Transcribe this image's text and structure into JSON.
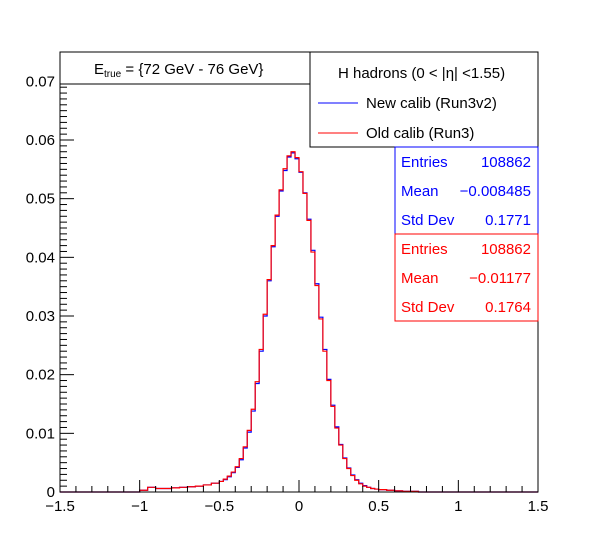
{
  "chart_data": {
    "type": "line",
    "step": true,
    "xlim": [
      -1.5,
      1.5
    ],
    "ylim": [
      0,
      0.075
    ],
    "x_ticks": [
      -1.5,
      -1,
      -0.5,
      0,
      0.5,
      1,
      1.5
    ],
    "x_tick_labels": [
      "−1.5",
      "−1",
      "−0.5",
      "0",
      "0.5",
      "1",
      "1.5"
    ],
    "y_ticks": [
      0,
      0.01,
      0.02,
      0.03,
      0.04,
      0.05,
      0.06,
      0.07
    ],
    "y_tick_labels": [
      "0",
      "0.01",
      "0.02",
      "0.03",
      "0.04",
      "0.05",
      "0.06",
      "0.07"
    ],
    "grid": false,
    "energy_label": {
      "prefix": "E",
      "subscript": "true",
      "text": " =  {72 GeV - 76 GeV}"
    },
    "legend": {
      "header": "H hadrons (0 < |η| <1.55)",
      "placement": "top-right"
    },
    "x": [
      -1.5,
      -1.45,
      -1.4,
      -1.35,
      -1.3,
      -1.25,
      -1.2,
      -1.15,
      -1.1,
      -1.05,
      -1.0,
      -0.95,
      -0.9,
      -0.85,
      -0.8,
      -0.75,
      -0.7,
      -0.65,
      -0.6,
      -0.55,
      -0.5,
      -0.475,
      -0.45,
      -0.425,
      -0.4,
      -0.375,
      -0.35,
      -0.325,
      -0.3,
      -0.275,
      -0.25,
      -0.225,
      -0.2,
      -0.175,
      -0.15,
      -0.125,
      -0.1,
      -0.075,
      -0.05,
      -0.025,
      0.0,
      0.025,
      0.05,
      0.075,
      0.1,
      0.125,
      0.15,
      0.175,
      0.2,
      0.225,
      0.25,
      0.275,
      0.3,
      0.325,
      0.35,
      0.375,
      0.4,
      0.425,
      0.45,
      0.475,
      0.5,
      0.55,
      0.6,
      0.65,
      0.7,
      0.75,
      0.8,
      0.85,
      0.9,
      0.95,
      1.0,
      1.05,
      1.1,
      1.15,
      1.2,
      1.25,
      1.3,
      1.35,
      1.4,
      1.45,
      1.5
    ],
    "series": [
      {
        "name": "New calib (Run3v2)",
        "color": "#0000ff",
        "values": [
          0,
          0,
          0,
          0,
          0,
          0,
          0,
          0,
          0,
          0,
          0.0003,
          0.0008,
          0.0006,
          0.0006,
          0.0007,
          0.0008,
          0.0009,
          0.001,
          0.0012,
          0.0015,
          0.0018,
          0.0021,
          0.0026,
          0.0033,
          0.0042,
          0.0055,
          0.0075,
          0.0102,
          0.0138,
          0.0185,
          0.024,
          0.03,
          0.036,
          0.0418,
          0.047,
          0.0513,
          0.0548,
          0.0571,
          0.0578,
          0.0568,
          0.0545,
          0.051,
          0.0465,
          0.0412,
          0.0355,
          0.0298,
          0.0243,
          0.0192,
          0.0148,
          0.0111,
          0.0081,
          0.0058,
          0.0041,
          0.0029,
          0.0021,
          0.0015,
          0.0011,
          0.0008,
          0.0006,
          0.0005,
          0.0004,
          0.0003,
          0.0002,
          0.0001,
          0.0001,
          0,
          0,
          0,
          0,
          0,
          0,
          0,
          0,
          0,
          0,
          0,
          0,
          0,
          0,
          0,
          0
        ]
      },
      {
        "name": "Old calib (Run3)",
        "color": "#ff0000",
        "values": [
          0,
          0,
          0,
          0,
          0,
          0,
          0,
          0,
          0,
          0,
          0.0003,
          0.0008,
          0.0006,
          0.0006,
          0.0007,
          0.0008,
          0.0009,
          0.001,
          0.0012,
          0.0015,
          0.0018,
          0.0022,
          0.0027,
          0.0034,
          0.0043,
          0.0057,
          0.0077,
          0.0105,
          0.0141,
          0.0188,
          0.0243,
          0.0303,
          0.0362,
          0.042,
          0.0472,
          0.0515,
          0.0551,
          0.0573,
          0.058,
          0.057,
          0.0546,
          0.0509,
          0.0463,
          0.0409,
          0.0352,
          0.0295,
          0.024,
          0.019,
          0.0146,
          0.0109,
          0.008,
          0.0057,
          0.004,
          0.0028,
          0.002,
          0.0014,
          0.001,
          0.0008,
          0.0006,
          0.0005,
          0.0004,
          0.0003,
          0.0002,
          0.0001,
          0.0001,
          0,
          0,
          0,
          0,
          0,
          0,
          0,
          0,
          0,
          0,
          0,
          0,
          0,
          0,
          0,
          0
        ]
      }
    ],
    "stats": [
      {
        "color": "#0000ff",
        "rows": [
          {
            "label": "Entries",
            "value": "108862"
          },
          {
            "label": "Mean",
            "value": "−0.008485"
          },
          {
            "label": "Std Dev",
            "value": "0.1771"
          }
        ]
      },
      {
        "color": "#ff0000",
        "rows": [
          {
            "label": "Entries",
            "value": "108862"
          },
          {
            "label": "Mean",
            "value": "−0.01177"
          },
          {
            "label": "Std Dev",
            "value": "0.1764"
          }
        ]
      }
    ]
  }
}
